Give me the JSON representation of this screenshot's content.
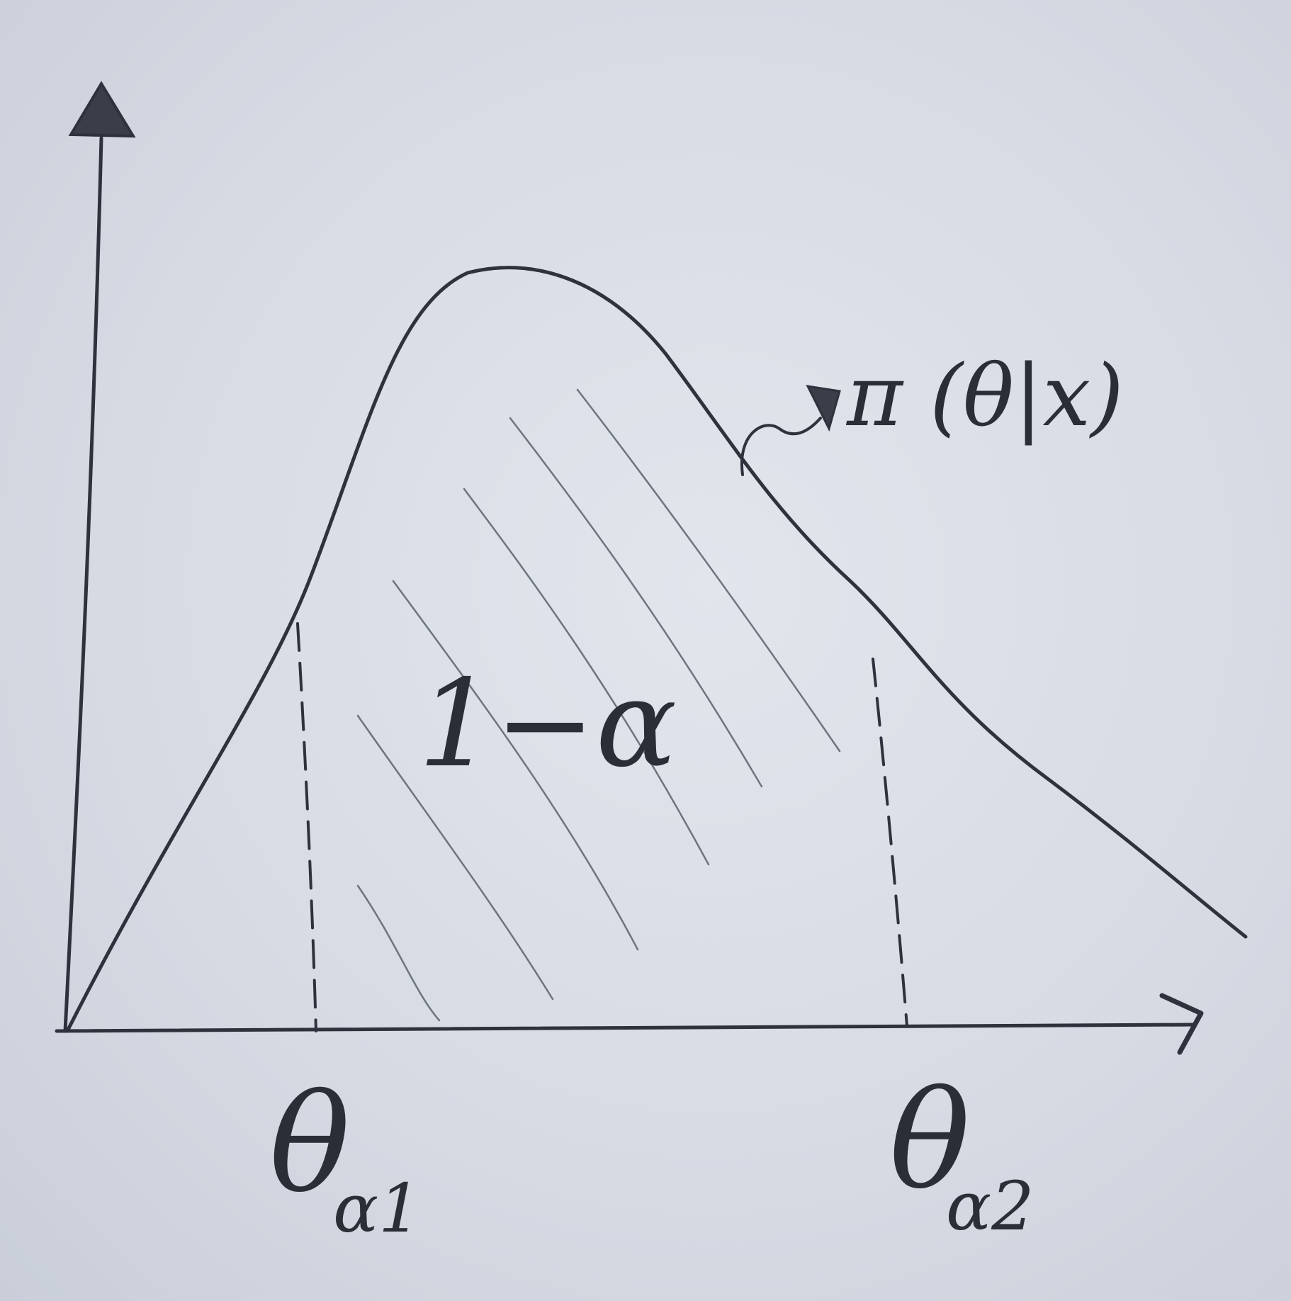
{
  "labels": {
    "density": "π (θ|x)",
    "area": "1−α",
    "theta_left": "θ",
    "theta_left_sub": "α1",
    "theta_right": "θ",
    "theta_right_sub": "α2"
  },
  "colors": {
    "paper": "#d9dde6",
    "ink": "#2e323c"
  }
}
